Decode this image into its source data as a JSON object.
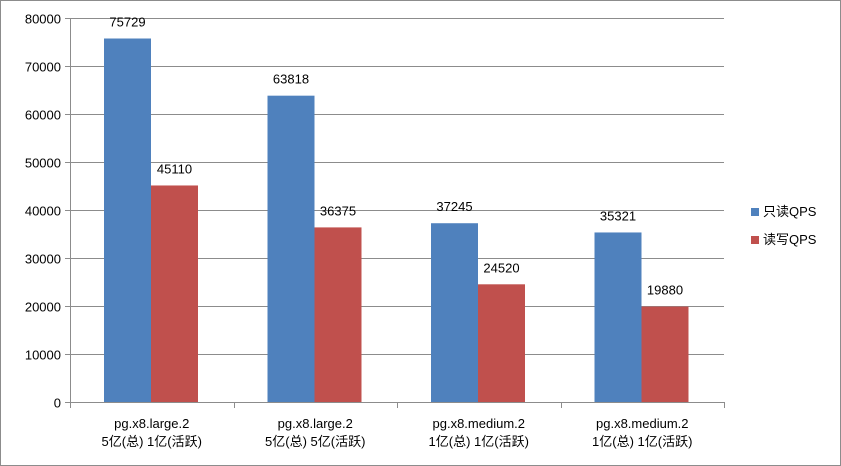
{
  "chart_data": {
    "type": "bar",
    "categories": [
      [
        "pg.x8.large.2",
        "5亿(总) 1亿(活跃)"
      ],
      [
        "pg.x8.large.2",
        "5亿(总) 5亿(活跃)"
      ],
      [
        "pg.x8.medium.2",
        "1亿(总) 1亿(活跃)"
      ],
      [
        "pg.x8.medium.2",
        "1亿(总) 1亿(活跃)"
      ]
    ],
    "series": [
      {
        "name": "只读QPS",
        "color": "#4f81bd",
        "values": [
          75729,
          63818,
          37245,
          35321
        ]
      },
      {
        "name": "读写QPS",
        "color": "#c0504d",
        "values": [
          45110,
          36375,
          24520,
          19880
        ]
      }
    ],
    "ylim": [
      0,
      80000
    ],
    "yticks": [
      0,
      10000,
      20000,
      30000,
      40000,
      50000,
      60000,
      70000,
      80000
    ],
    "grid": true,
    "legend": "right",
    "title": "",
    "xlabel": "",
    "ylabel": ""
  }
}
